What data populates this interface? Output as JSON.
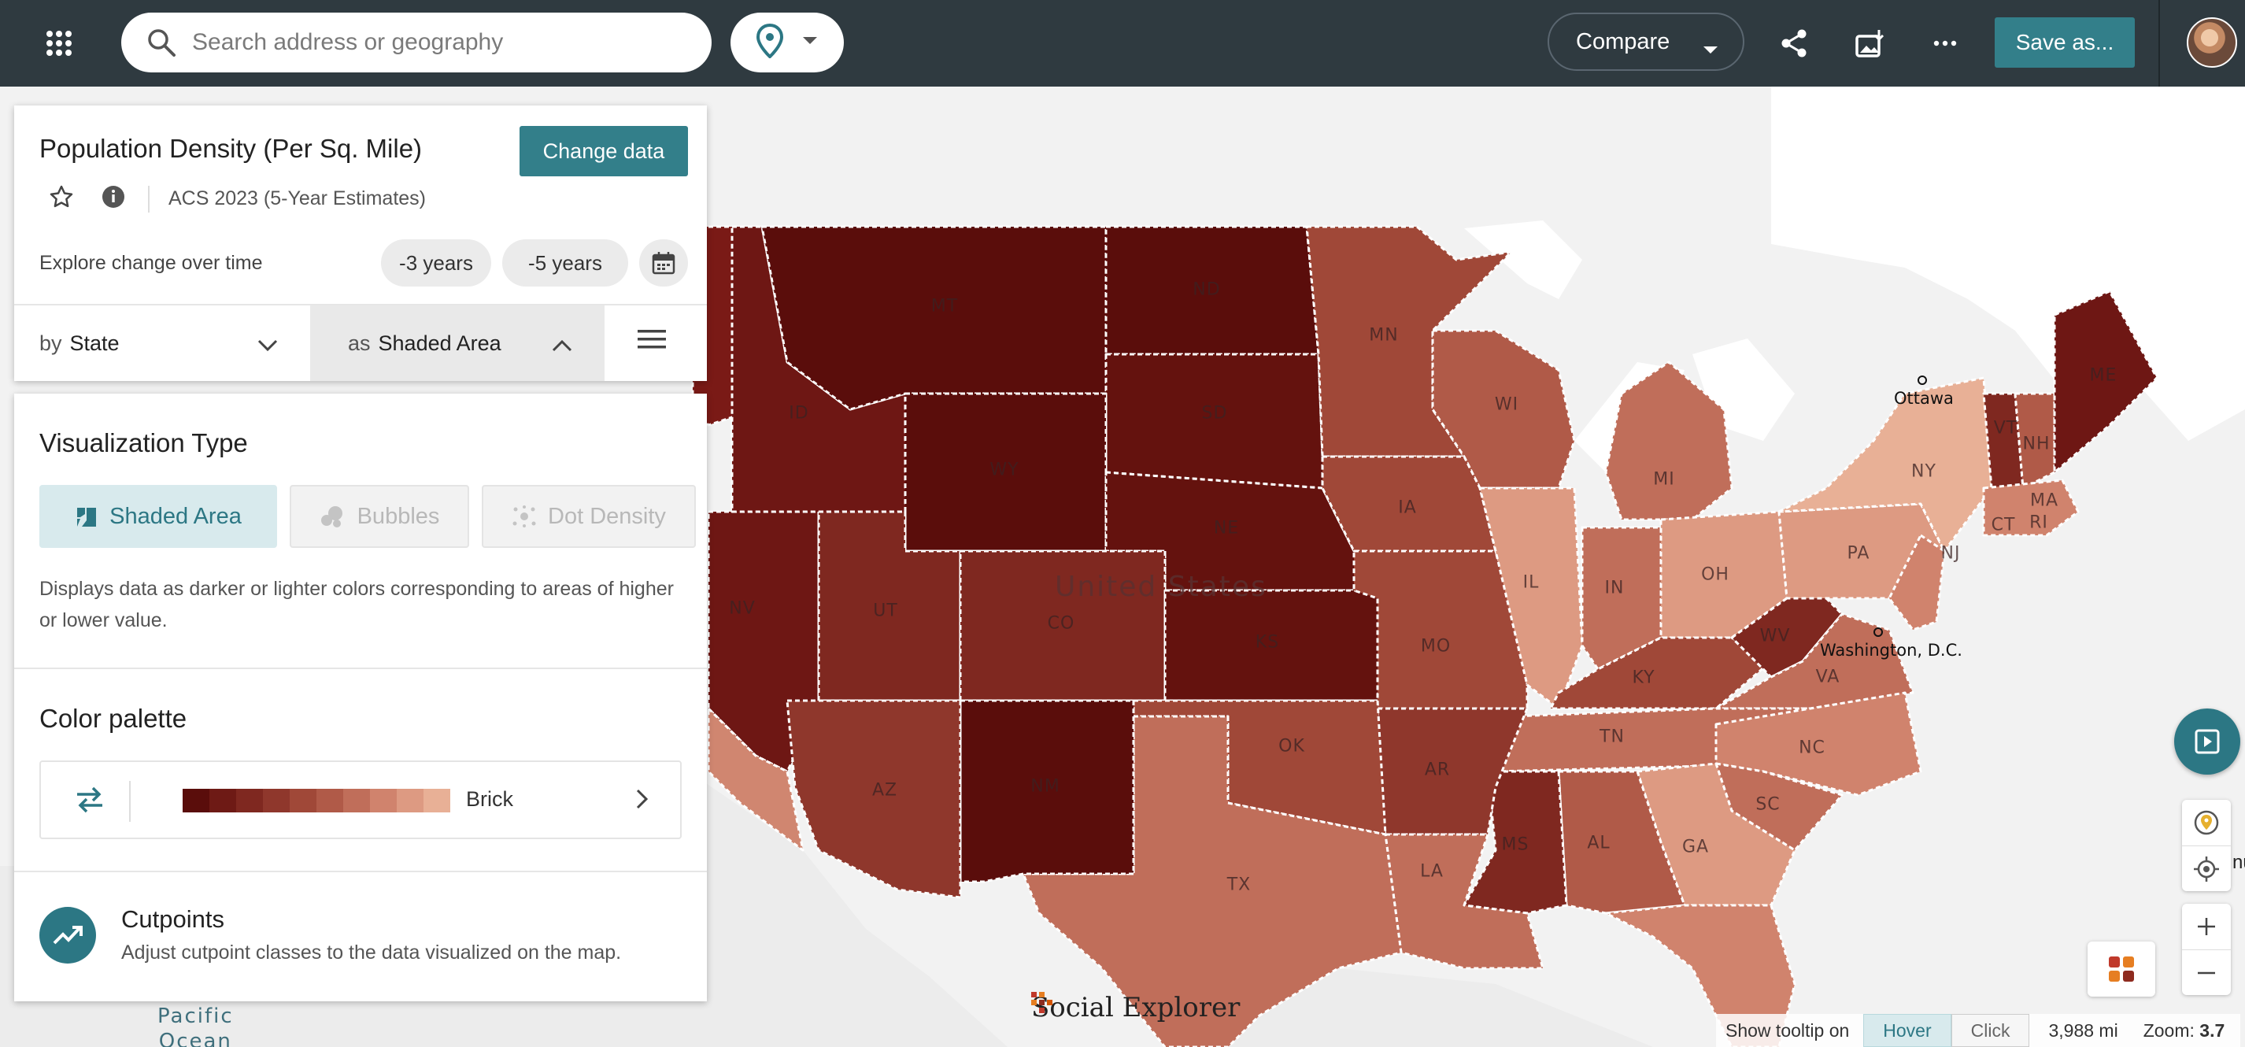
{
  "topbar": {
    "search_placeholder": "Search address or geography",
    "compare_label": "Compare",
    "save_label": "Save as...",
    "icons": [
      "apps-grid-icon",
      "search-icon",
      "location-pin-icon",
      "chevron-down-icon",
      "share-icon",
      "export-image-icon",
      "more-icon"
    ]
  },
  "panel": {
    "title": "Population Density (Per Sq. Mile)",
    "change_data_label": "Change data",
    "survey": "ACS 2023 (5-Year Estimates)",
    "explore_label": "Explore change over time",
    "chips": [
      "-3 years",
      "-5 years"
    ],
    "by_prefix": "by",
    "by_value": "State",
    "as_prefix": "as",
    "as_value": "Shaded Area"
  },
  "viz": {
    "heading": "Visualization Type",
    "types": [
      {
        "label": "Shaded Area",
        "active": true
      },
      {
        "label": "Bubbles",
        "active": false
      },
      {
        "label": "Dot Density",
        "active": false
      }
    ],
    "description": "Displays data as darker or lighter colors corresponding to areas of higher or lower value."
  },
  "palette": {
    "heading": "Color palette",
    "name": "Brick",
    "colors": [
      "#5a0d0b",
      "#6e1a15",
      "#7f2820",
      "#8f372c",
      "#a04838",
      "#b05a48",
      "#c06e5a",
      "#d0836d",
      "#dd9a82",
      "#e8b096"
    ]
  },
  "cutpoints": {
    "title": "Cutpoints",
    "description": "Adjust cutpoint classes to the data visualized on the map."
  },
  "map": {
    "country_label": "United States",
    "ocean_label_1": "Pacific",
    "ocean_label_2": "Ocean",
    "logo_text": "Social Explorer",
    "cities": [
      {
        "name": "Ottawa"
      },
      {
        "name": "Washington, D.C."
      }
    ],
    "edge_text": "nu",
    "state_labels": [
      "MT",
      "ND",
      "MN",
      "ID",
      "SD",
      "WY",
      "WI",
      "NE",
      "IA",
      "MI",
      "IL",
      "IN",
      "OH",
      "NV",
      "UT",
      "CO",
      "KS",
      "MO",
      "KY",
      "WV",
      "VA",
      "PA",
      "NY",
      "NJ",
      "VT",
      "NH",
      "ME",
      "MA",
      "CT",
      "RI",
      "TN",
      "NC",
      "SC",
      "GA",
      "AL",
      "MS",
      "AR",
      "LA",
      "OK",
      "TX",
      "NM",
      "AZ"
    ]
  },
  "status": {
    "tooltip_label": "Show tooltip on",
    "hover_label": "Hover",
    "click_label": "Click",
    "scale": "3,988 mi",
    "zoom_label": "Zoom:",
    "zoom_value": "3.7"
  }
}
